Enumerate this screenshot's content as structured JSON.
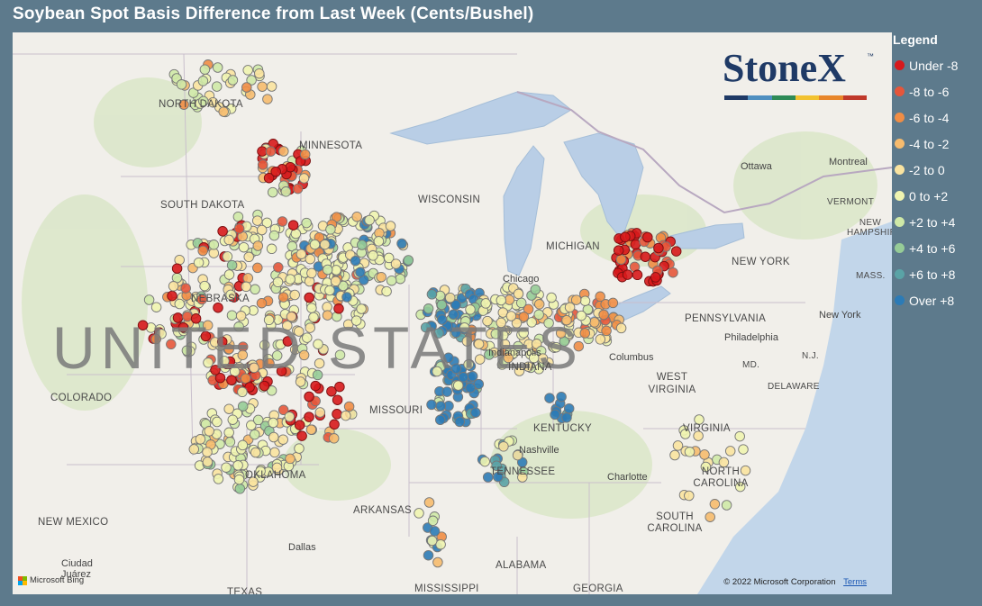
{
  "title": "Soybean Spot Basis Difference from Last Week (Cents/Bushel)",
  "legend": {
    "title": "Legend",
    "items": [
      {
        "label": "Under -8",
        "color": "#d7191c"
      },
      {
        "label": "-8 to -6",
        "color": "#e5563b"
      },
      {
        "label": "-6 to -4",
        "color": "#f08d45"
      },
      {
        "label": "-4 to -2",
        "color": "#f6bb6e"
      },
      {
        "label": "-2 to 0",
        "color": "#f9e3a0"
      },
      {
        "label": "0 to +2",
        "color": "#eff4b0"
      },
      {
        "label": "+2 to +4",
        "color": "#cfe9a7"
      },
      {
        "label": "+4 to +6",
        "color": "#96cc97"
      },
      {
        "label": "+6 to +8",
        "color": "#5aa3a6"
      },
      {
        "label": "Over +8",
        "color": "#2c7bb6"
      }
    ]
  },
  "logo": {
    "wordmark": "StoneX",
    "tm": "™",
    "stripe_colors": [
      "#1f3a66",
      "#4f8fc0",
      "#2e8b57",
      "#f2c230",
      "#e8862a",
      "#c0392b"
    ]
  },
  "country_label": "UNITED STATES",
  "state_labels": [
    "NORTH DAKOTA",
    "MINNESOTA",
    "SOUTH DAKOTA",
    "NEBRASKA",
    "COLORADO",
    "MISSOURI",
    "KENTUCKY",
    "TENNESSEE",
    "ARKANSAS",
    "OKLAHOMA",
    "NEW MEXICO",
    "TEXAS",
    "MISSISSIPPI",
    "ALABAMA",
    "GEORGIA",
    "SOUTH CAROLINA",
    "NORTH CAROLINA",
    "VIRGINIA",
    "WEST VIRGINIA",
    "PENNSYLVANIA",
    "NEW YORK",
    "VERMONT",
    "NEW HAMPSHIRE",
    "MASS.",
    "DELAWARE",
    "MD.",
    "N.J.",
    "WISCONSIN",
    "MICHIGAN",
    "INDIANA"
  ],
  "city_labels": [
    "Ottawa",
    "Montreal",
    "Chicago",
    "Indianapolis",
    "Columbus",
    "Nashville",
    "Charlotte",
    "Philadelphia",
    "New York",
    "Dallas",
    "Ciudad Juárez"
  ],
  "attribution": {
    "bing": "Microsoft Bing",
    "copyright": "© 2022 Microsoft Corporation",
    "terms": "Terms"
  }
}
